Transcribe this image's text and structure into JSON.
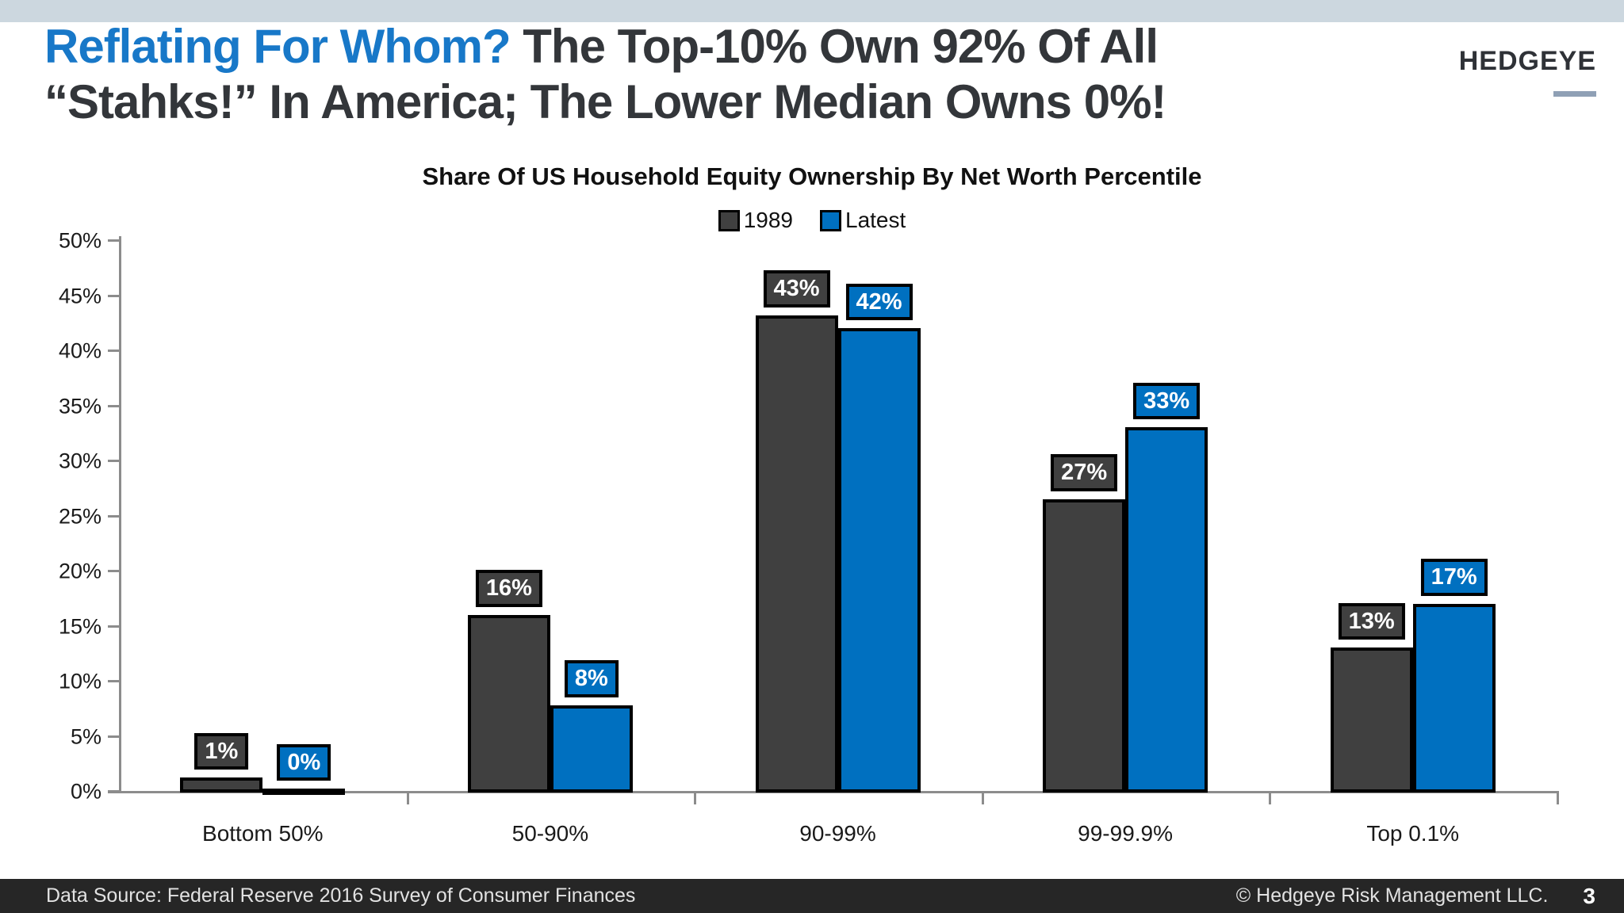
{
  "header": {
    "title_highlight": "Reflating For Whom?",
    "title_rest_line1": " The Top-10% Own 92% Of All",
    "title_line2": "“Stahks!” In America; The Lower Median Owns 0%!",
    "logo_text": "HEDGEYE"
  },
  "footer": {
    "left": "Data Source: Federal Reserve 2016 Survey of Consumer Finances",
    "right": "© Hedgeye Risk Management LLC.",
    "page_number": "3"
  },
  "colors": {
    "headline_highlight": "#1878c8",
    "headline_text": "#33363a",
    "top_stripe": "#ccd7df",
    "series_1989": "#404040",
    "series_latest": "#0070c0",
    "axis": "#8c8c8c",
    "footer_bg": "#262626"
  },
  "chart_data": {
    "type": "bar",
    "title": "Share Of US Household Equity Ownership By Net Worth Percentile",
    "categories": [
      "Bottom 50%",
      "50-90%",
      "90-99%",
      "99-99.9%",
      "Top 0.1%"
    ],
    "series": [
      {
        "name": "1989",
        "color": "#404040",
        "values": [
          1.2,
          16,
          43.2,
          26.5,
          13
        ],
        "labels": [
          "1%",
          "16%",
          "43%",
          "27%",
          "13%"
        ]
      },
      {
        "name": "Latest",
        "color": "#0070c0",
        "values": [
          0.2,
          7.8,
          42,
          33,
          17
        ],
        "labels": [
          "0%",
          "8%",
          "42%",
          "33%",
          "17%"
        ]
      }
    ],
    "xlabel": "",
    "ylabel": "",
    "ylim": [
      0,
      50
    ],
    "ytick_step": 5,
    "ytick_labels": [
      "0%",
      "5%",
      "10%",
      "15%",
      "20%",
      "25%",
      "30%",
      "35%",
      "40%",
      "45%",
      "50%"
    ],
    "legend_position": "top-center",
    "grid": false
  }
}
